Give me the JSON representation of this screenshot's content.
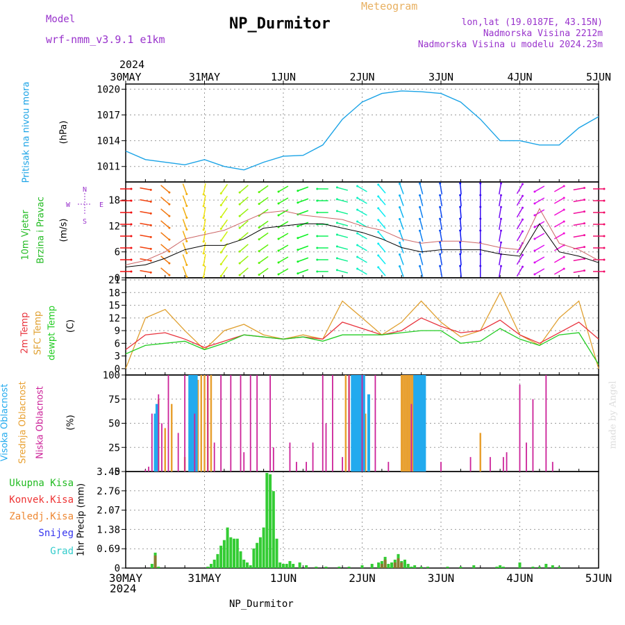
{
  "header": {
    "model_label": "Model",
    "model_name": "wrf-nmm_v3.9.1  e1km",
    "title": "NP_Durmitor",
    "meteogram_label": "Meteogram",
    "lonlat": "lon,lat (19.0187E, 43.15N)",
    "altitude": "Nadmorska Visina 2212m",
    "model_altitude": "Nadmorska Visina u modelu 2024.23m",
    "year_top": "2024",
    "year_bottom": "2024",
    "footer_station": "NP_Durmitor",
    "watermark": "made by Angel"
  },
  "colors": {
    "pressure": "#1aa3e6",
    "temp2m": "#e8323c",
    "sfc_temp": "#e0a030",
    "dewpoint": "#22cc22",
    "high_cloud": "#22aaee",
    "mid_cloud": "#e8a030",
    "low_cloud": "#cc2299",
    "precip_total": "#33cc33",
    "precip_conv": "#ee3333",
    "precip_frozen": "#ee8833",
    "snow": "#3333ee",
    "hail": "#33cccc",
    "grid": "#999999"
  },
  "chart_data": [
    {
      "type": "line",
      "panel": "pressure",
      "ylabel": [
        "Pritisak na nivou mora",
        "(hPa)"
      ],
      "x_ticks": [
        "30MAY",
        "31MAY",
        "1JUN",
        "2JUN",
        "3JUN",
        "4JUN",
        "5JUN"
      ],
      "ylim": [
        1009.2,
        1020.6
      ],
      "yticks": [
        1011,
        1014,
        1017,
        1020
      ],
      "x_hours": [
        0,
        6,
        12,
        18,
        24,
        30,
        36,
        42,
        48,
        54,
        60,
        66,
        72,
        78,
        84,
        90,
        96,
        102,
        108,
        114,
        120,
        126,
        132,
        138,
        144
      ],
      "series": [
        {
          "values": [
            1012.8,
            1011.8,
            1011.5,
            1011.2,
            1011.8,
            1011.0,
            1010.6,
            1011.5,
            1012.2,
            1012.3,
            1013.5,
            1016.5,
            1018.5,
            1019.5,
            1019.8,
            1019.7,
            1019.5,
            1018.5,
            1016.5,
            1014.0,
            1014.0,
            1013.5,
            1013.5,
            1015.5,
            1016.8
          ]
        }
      ]
    },
    {
      "type": "line",
      "panel": "wind",
      "ylabel": [
        "10m Vjetar",
        "Brzina i Pravac",
        "(m/s)"
      ],
      "compass": [
        "N",
        "E",
        "S",
        "W"
      ],
      "ylim": [
        0,
        22.2
      ],
      "yticks": [
        0,
        6,
        12,
        18
      ],
      "grid": true,
      "x_hours": [
        0,
        6,
        12,
        18,
        24,
        30,
        36,
        42,
        48,
        54,
        60,
        66,
        72,
        78,
        84,
        90,
        96,
        102,
        108,
        114,
        120,
        126,
        132,
        138,
        144
      ],
      "series": [
        {
          "name": "speed",
          "values": [
            2.5,
            3.0,
            4.5,
            6.5,
            7.5,
            7.5,
            9.0,
            11.5,
            12.0,
            12.5,
            12.5,
            11.5,
            10.5,
            9.0,
            7.0,
            6.0,
            6.5,
            6.5,
            6.5,
            5.5,
            5.0,
            12.5,
            6.0,
            5.0,
            3.5
          ]
        },
        {
          "name": "gust",
          "values": [
            3.0,
            4.0,
            6.0,
            9.0,
            10.0,
            11.0,
            13.0,
            15.0,
            15.5,
            14.5,
            14.0,
            13.5,
            12.0,
            11.0,
            9.0,
            8.0,
            8.5,
            8.5,
            8.0,
            7.0,
            6.5,
            16.0,
            8.0,
            6.5,
            4.0
          ]
        }
      ],
      "direction_deg": [
        90,
        100,
        130,
        160,
        190,
        215,
        230,
        235,
        240,
        250,
        270,
        285,
        300,
        320,
        340,
        345,
        350,
        355,
        0,
        10,
        30,
        240,
        60,
        80,
        90
      ]
    },
    {
      "type": "line",
      "panel": "temperature",
      "ylabel": [
        "2m Temp",
        "SFC Temp",
        "dewpt Temp",
        "(C)"
      ],
      "ylim": [
        -1.5,
        21.5
      ],
      "yticks": [
        0,
        3,
        6,
        9,
        12,
        15,
        18,
        21
      ],
      "x_hours": [
        0,
        6,
        12,
        18,
        24,
        30,
        36,
        42,
        48,
        54,
        60,
        66,
        72,
        78,
        84,
        90,
        96,
        102,
        108,
        114,
        120,
        126,
        132,
        138,
        144
      ],
      "series": [
        {
          "name": "2m Temp",
          "values": [
            4.5,
            8.0,
            8.5,
            7.0,
            5.0,
            6.5,
            8.0,
            7.5,
            7.0,
            7.5,
            7.0,
            11.0,
            9.5,
            8.0,
            9.0,
            12.0,
            10.0,
            8.5,
            9.0,
            11.5,
            8.0,
            6.0,
            8.5,
            11.0,
            7.0
          ]
        },
        {
          "name": "SFC Temp",
          "values": [
            0.0,
            12.0,
            14.0,
            9.0,
            4.5,
            9.0,
            10.5,
            8.0,
            7.0,
            8.0,
            7.0,
            16.0,
            12.0,
            8.0,
            11.0,
            16.0,
            11.0,
            7.5,
            9.0,
            18.0,
            8.0,
            5.5,
            12.0,
            16.0,
            0.0
          ]
        },
        {
          "name": "dewpt Temp",
          "values": [
            3.5,
            5.5,
            6.0,
            6.5,
            4.5,
            6.0,
            8.0,
            7.5,
            7.0,
            7.5,
            6.5,
            8.0,
            8.0,
            8.0,
            8.5,
            9.0,
            9.0,
            6.0,
            6.5,
            9.5,
            7.0,
            5.5,
            8.0,
            8.5,
            1.0
          ]
        }
      ]
    },
    {
      "type": "bar",
      "panel": "cloud",
      "ylabel": [
        "Visoka Oblacnost",
        "Srednja Oblacnost",
        "Niska Oblacnost",
        "(%)"
      ],
      "ylim": [
        0,
        100
      ],
      "yticks": [
        0,
        25,
        50,
        75,
        100
      ],
      "series": [
        {
          "name": "Visoka Oblacnost",
          "x_hours": [
            9,
            9.5,
            19.5,
            20,
            20.5,
            21,
            21.5,
            69,
            69.5,
            70,
            70.5,
            71,
            71.5,
            72,
            72.5,
            74,
            88,
            88.5,
            89,
            89.5,
            90,
            90.5,
            91
          ],
          "values": [
            60,
            70,
            100,
            100,
            100,
            100,
            100,
            100,
            100,
            100,
            100,
            100,
            100,
            100,
            100,
            80,
            100,
            100,
            100,
            100,
            100,
            100,
            100
          ]
        },
        {
          "name": "Srednja Oblacnost",
          "x_hours": [
            10,
            12,
            14,
            18,
            22,
            23,
            24,
            25,
            26,
            67,
            68,
            73,
            84,
            84.5,
            85,
            85.5,
            86,
            86.5,
            87,
            87.5,
            88,
            108
          ],
          "values": [
            75,
            45,
            70,
            15,
            95,
            100,
            100,
            100,
            100,
            100,
            100,
            60,
            100,
            100,
            100,
            100,
            100,
            100,
            100,
            100,
            100,
            40
          ]
        },
        {
          "name": "Niska Oblacnost",
          "x_hours": [
            6,
            7,
            8,
            10,
            11,
            13,
            16,
            18,
            21,
            25,
            27,
            29,
            32,
            35,
            36,
            38,
            40,
            44,
            45,
            50,
            52,
            55,
            57,
            60,
            61,
            63,
            66,
            68,
            72,
            76,
            80,
            87,
            96,
            105,
            111,
            115,
            116,
            120,
            122,
            124,
            128,
            130
          ],
          "values": [
            2,
            5,
            60,
            80,
            50,
            100,
            40,
            100,
            60,
            100,
            30,
            100,
            100,
            100,
            20,
            100,
            100,
            100,
            25,
            30,
            10,
            10,
            30,
            100,
            50,
            100,
            15,
            100,
            100,
            100,
            10,
            70,
            10,
            15,
            15,
            15,
            20,
            90,
            30,
            75,
            100,
            10
          ]
        }
      ]
    },
    {
      "type": "bar",
      "panel": "precip",
      "ylabel": [
        "1hr Precip (mm)"
      ],
      "legend": [
        "Ukupna Kisa",
        "Konvek.Kisa",
        "Zaledj.Kisa",
        "Snijeg",
        "Grad"
      ],
      "ylim": [
        0,
        3.45
      ],
      "yticks": [
        0,
        0.69,
        1.38,
        2.07,
        2.76,
        3.45
      ],
      "x_ticks": [
        "30MAY",
        "31MAY",
        "1JUN",
        "2JUN",
        "3JUN",
        "4JUN",
        "5JUN"
      ],
      "series": [
        {
          "name": "Ukupna Kisa",
          "x_hours": [
            8,
            9,
            10,
            25,
            26,
            27,
            28,
            29,
            30,
            31,
            32,
            33,
            34,
            35,
            36,
            37,
            38,
            39,
            40,
            41,
            42,
            43,
            44,
            45,
            46,
            47,
            48,
            49,
            50,
            51,
            53,
            55,
            58,
            61,
            65,
            68,
            72,
            75,
            77,
            78,
            79,
            80,
            81,
            82,
            83,
            84,
            85,
            86,
            87,
            88,
            90,
            92,
            98,
            102,
            106,
            113,
            114,
            115,
            120,
            124,
            126,
            128,
            130,
            132
          ],
          "values": [
            0.15,
            0.55,
            0.05,
            0.05,
            0.15,
            0.3,
            0.5,
            0.8,
            1.0,
            1.45,
            1.1,
            1.05,
            1.05,
            0.6,
            0.3,
            0.2,
            0.1,
            0.7,
            0.9,
            1.1,
            1.45,
            3.4,
            3.35,
            2.75,
            1.05,
            0.2,
            0.15,
            0.15,
            0.25,
            0.15,
            0.2,
            0.1,
            0.05,
            0.05,
            0.05,
            0.05,
            0.1,
            0.15,
            0.2,
            0.25,
            0.4,
            0.15,
            0.2,
            0.3,
            0.5,
            0.25,
            0.3,
            0.15,
            0.05,
            0.1,
            0.05,
            0.05,
            0.05,
            0.05,
            0.1,
            0.05,
            0.1,
            0.05,
            0.2,
            0.05,
            0.05,
            0.15,
            0.1,
            0.05
          ]
        },
        {
          "name": "Konvek.Kisa",
          "x_hours": [
            9,
            78,
            79,
            82,
            83,
            84
          ],
          "values": [
            0.45,
            0.15,
            0.3,
            0.2,
            0.35,
            0.2
          ]
        }
      ]
    }
  ]
}
